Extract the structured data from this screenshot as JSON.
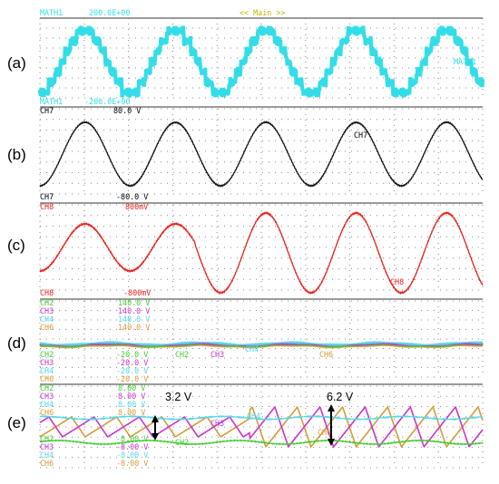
{
  "colors": {
    "math1": "#33dde8",
    "ch7": "#111111",
    "ch8": "#e8221c",
    "ch2": "#44cc33",
    "ch3": "#cc33cc",
    "ch4": "#55d8e8",
    "ch6": "#d89a38",
    "header_mode": "#c9b500",
    "grid": "#8c8c8c",
    "frame": "#7a7a7a"
  },
  "header": {
    "channel": "MATH1",
    "top_scale": "200.0E+00",
    "mode": "<< Main >>"
  },
  "chart_data": [
    {
      "type": "line",
      "panel_label": "(a)",
      "series": [
        {
          "name": "MATH1",
          "description": "stepped multilevel waveform with switching ripple",
          "cycles": 4.9
        }
      ],
      "top_scale": "200.0E+00",
      "bottom_scale": "-200.0E+00",
      "bottom_channel": "MATH1",
      "ylim": [
        -200,
        200
      ],
      "trace_tag": "MATH1"
    },
    {
      "type": "line",
      "panel_label": "(b)",
      "top_channel": "CH7",
      "top_scale": "80.0 V",
      "bottom_channel": "CH7",
      "bottom_scale": "-80.0 V",
      "ylim": [
        -80,
        80
      ],
      "series": [
        {
          "name": "CH7",
          "peak_v": 60,
          "cycles": 4.9
        }
      ],
      "trace_tag": "CH7"
    },
    {
      "type": "line",
      "panel_label": "(c)",
      "top_channel": "CH8",
      "top_scale": "800mV",
      "bottom_channel": "CH8",
      "bottom_scale": "-800mV",
      "ylim": [
        -0.8,
        0.8
      ],
      "series": [
        {
          "name": "CH8",
          "amplitude_first_half_v": 0.36,
          "amplitude_second_half_v": 0.53,
          "cycles": 4.9
        }
      ],
      "trace_tag": "CH8"
    },
    {
      "type": "line",
      "panel_label": "(d)",
      "top_scales": [
        {
          "ch": "CH2",
          "scale": "140.0 V"
        },
        {
          "ch": "CH3",
          "scale": "140.0 V"
        },
        {
          "ch": "CH4",
          "scale": "140.0 V"
        },
        {
          "ch": "CH6",
          "scale": "140.0 V"
        }
      ],
      "bottom_scales": [
        {
          "ch": "CH2",
          "scale": "-20.0 V"
        },
        {
          "ch": "CH3",
          "scale": "-20.0 V"
        },
        {
          "ch": "CH4",
          "scale": "-20.0 V"
        },
        {
          "ch": "CH6",
          "scale": "-20.0 V"
        }
      ],
      "ylim": [
        -20,
        140
      ],
      "series": [
        {
          "name": "CH2",
          "level_v": 1
        },
        {
          "name": "CH3",
          "level_v": 2
        },
        {
          "name": "CH4",
          "level_v": 3
        },
        {
          "name": "CH6",
          "level_v": 0
        }
      ],
      "trace_tags": [
        "CH2",
        "CH3",
        "CH4",
        "CH6"
      ]
    },
    {
      "type": "line",
      "panel_label": "(e)",
      "top_scales": [
        {
          "ch": "CH2",
          "scale": "8.00 V"
        },
        {
          "ch": "CH3",
          "scale": "8.00 V"
        },
        {
          "ch": "CH4",
          "scale": "8.00 V"
        },
        {
          "ch": "CH6",
          "scale": "8.00 V"
        }
      ],
      "bottom_scales": [
        {
          "ch": "CH2",
          "scale": "-8.00 V"
        },
        {
          "ch": "CH3",
          "scale": "-8.00 V"
        },
        {
          "ch": "CH4",
          "scale": "-8.00 V"
        },
        {
          "ch": "CH6",
          "scale": "-8.00 V"
        }
      ],
      "ylim": [
        -8,
        8
      ],
      "series": [
        {
          "name": "CH3",
          "peak_to_peak_first_half_v": 3.2,
          "peak_to_peak_second_half_v": 6.2
        },
        {
          "name": "CH6",
          "peak_to_peak_first_half_v": 3.2,
          "peak_to_peak_second_half_v": 6.2
        },
        {
          "name": "CH2"
        },
        {
          "name": "CH4"
        }
      ],
      "trace_tags": [
        "CH3",
        "CH4",
        "CH2",
        "CH6"
      ],
      "annotations": [
        "3.2 V",
        "6.2 V"
      ]
    }
  ]
}
